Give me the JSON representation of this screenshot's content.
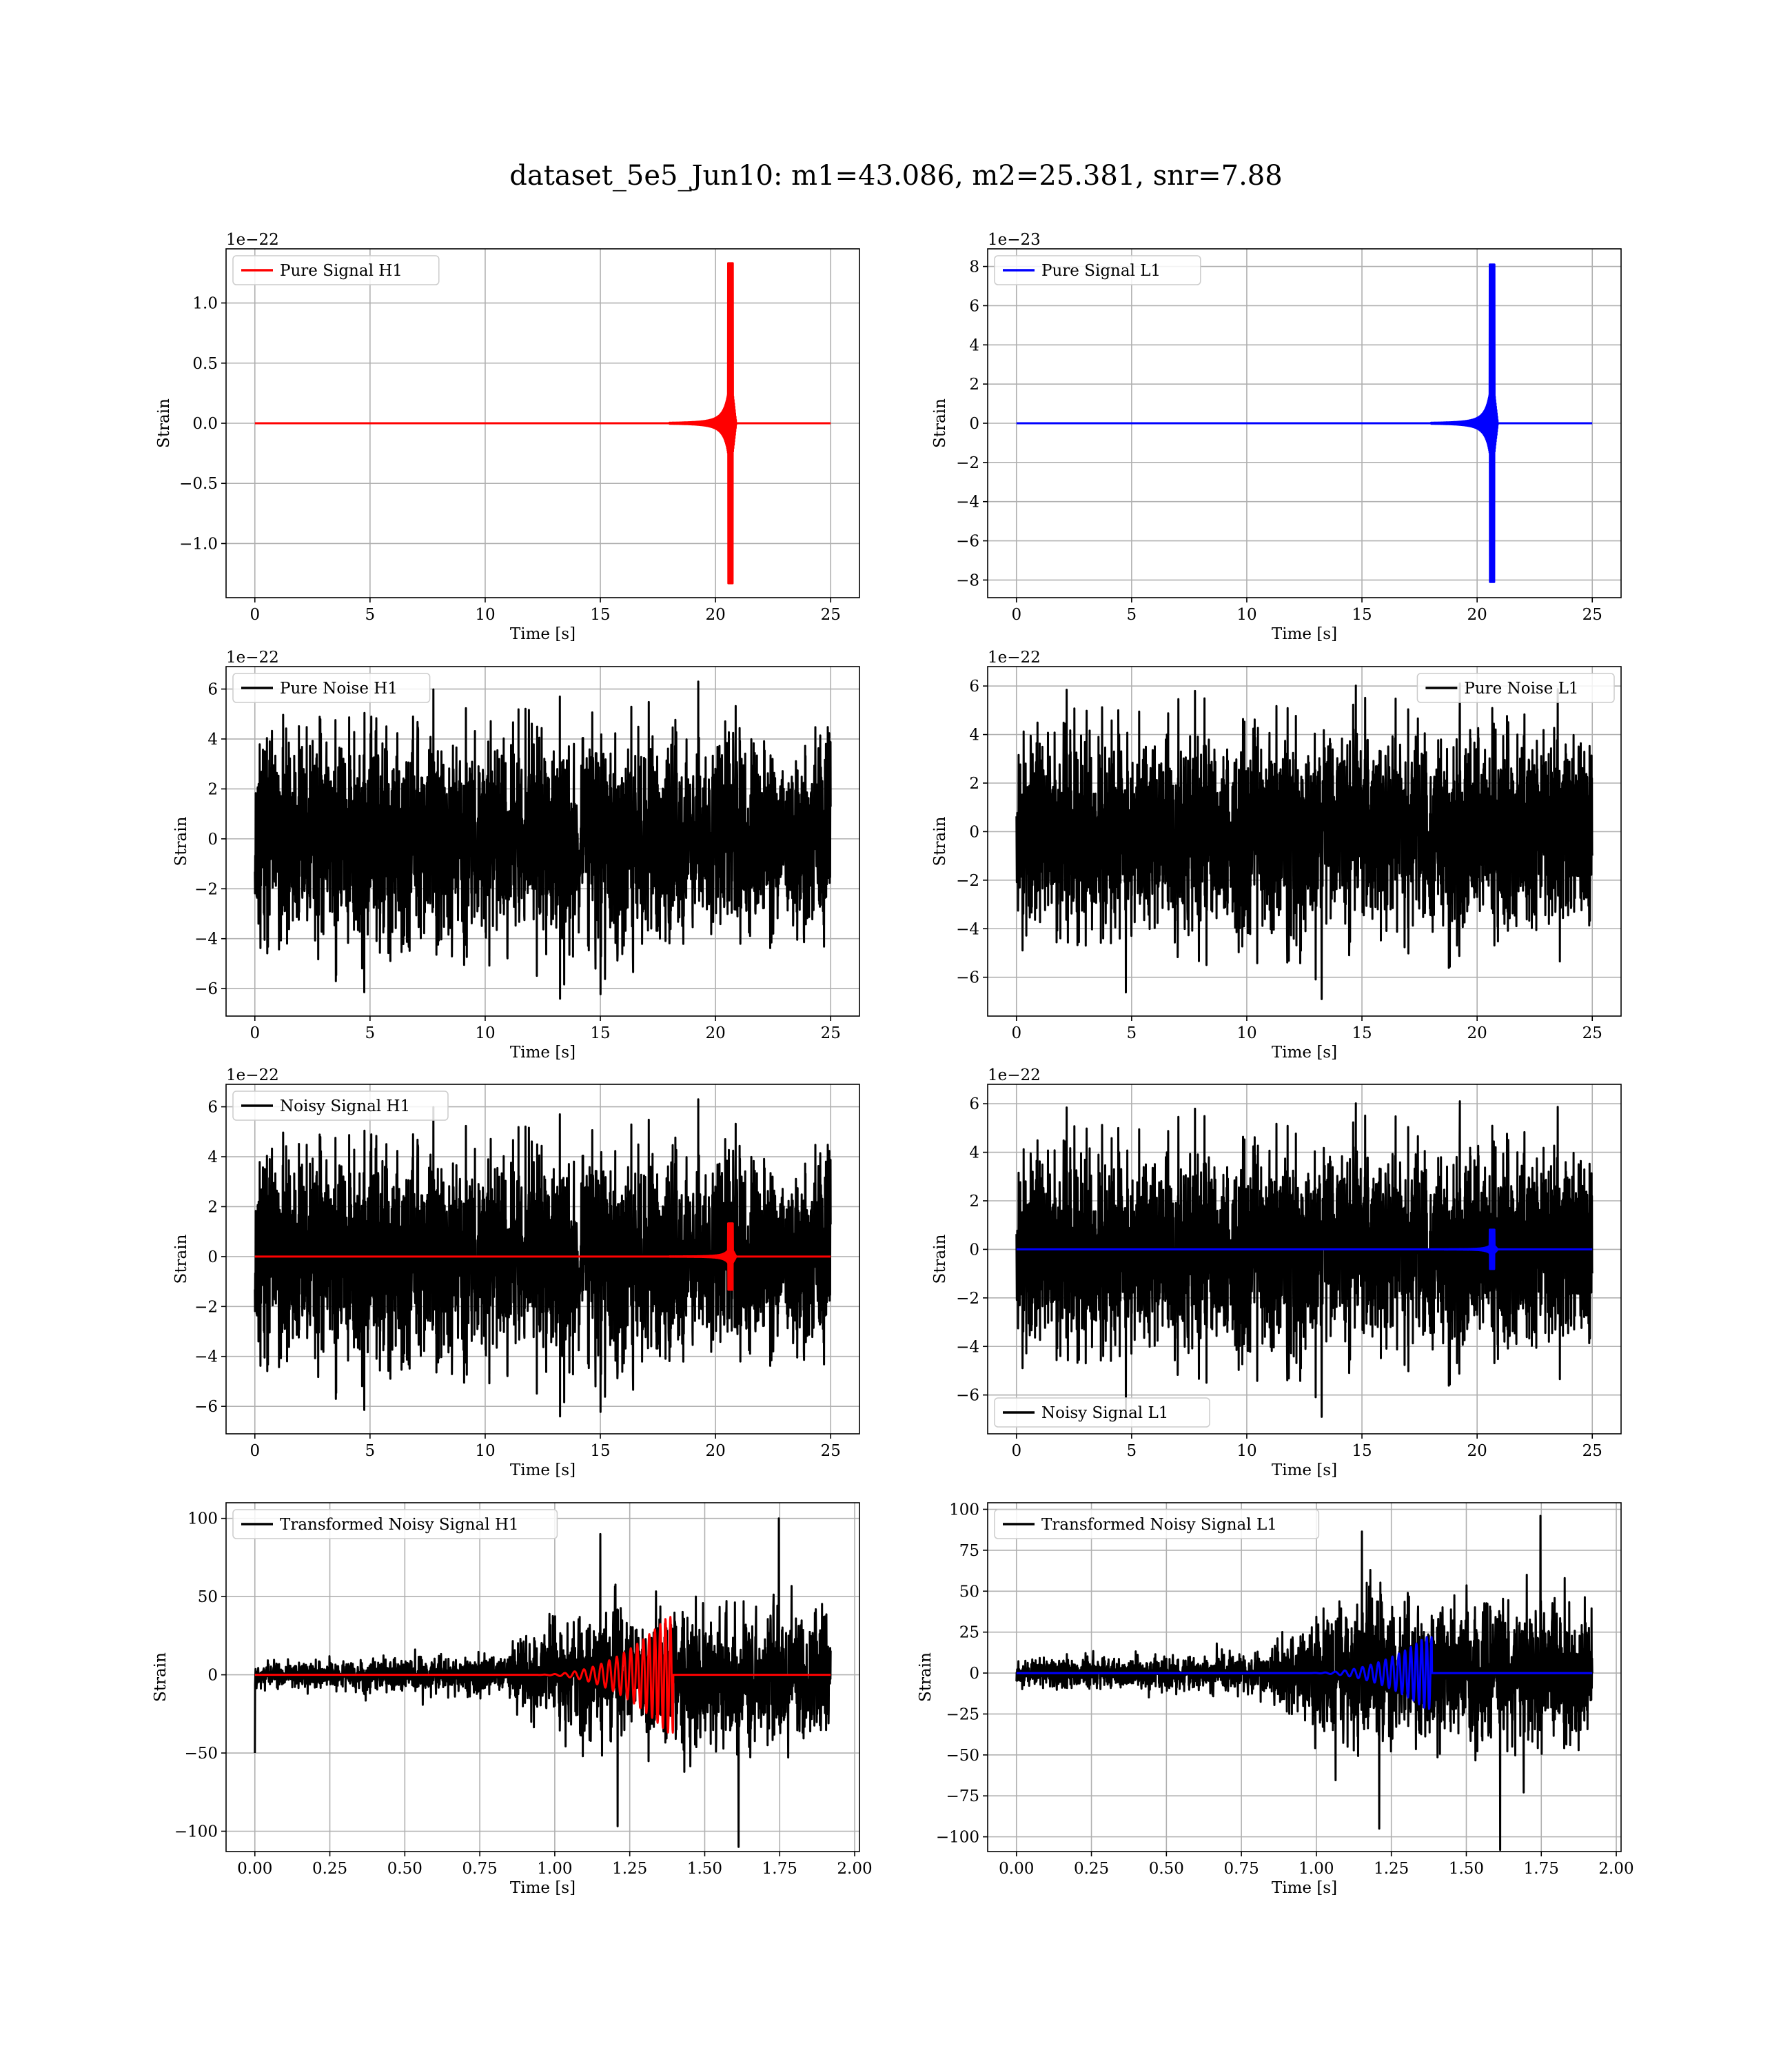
{
  "figure": {
    "title": "dataset_5e5_Jun10: m1=43.086, m2=25.381, snr=7.88"
  },
  "chart_data": [
    {
      "type": "line",
      "panel": "pure-signal-h1",
      "xlabel": "Time [s]",
      "ylabel": "Strain",
      "offset_label": "1e−22",
      "xlim": [
        -1.25,
        26.25
      ],
      "ylim": [
        -1.45,
        1.45
      ],
      "xticks": [
        0,
        5,
        10,
        15,
        20,
        25
      ],
      "xtick_labels": [
        "0",
        "5",
        "10",
        "15",
        "20",
        "25"
      ],
      "yticks": [
        -1.0,
        -0.5,
        0.0,
        0.5,
        1.0
      ],
      "ytick_labels": [
        "−1.0",
        "−0.5",
        "0.0",
        "0.5",
        "1.0"
      ],
      "grid": true,
      "legend_loc": "upper left",
      "series": [
        {
          "name": "Pure Signal H1",
          "color": "#ff0000",
          "kind": "chirp",
          "duration": 25,
          "merger": 20.7,
          "peak": 1.33,
          "pre_amp": 0.62,
          "baseline": 0.0
        }
      ]
    },
    {
      "type": "line",
      "panel": "pure-signal-l1",
      "xlabel": "Time [s]",
      "ylabel": "Strain",
      "offset_label": "1e−23",
      "xlim": [
        -1.25,
        26.25
      ],
      "ylim": [
        -8.9,
        8.9
      ],
      "xticks": [
        0,
        5,
        10,
        15,
        20,
        25
      ],
      "xtick_labels": [
        "0",
        "5",
        "10",
        "15",
        "20",
        "25"
      ],
      "yticks": [
        -8,
        -6,
        -4,
        -2,
        0,
        2,
        4,
        6,
        8
      ],
      "ytick_labels": [
        "−8",
        "−6",
        "−4",
        "−2",
        "0",
        "2",
        "4",
        "6",
        "8"
      ],
      "grid": true,
      "legend_loc": "upper left",
      "series": [
        {
          "name": "Pure Signal L1",
          "color": "#0000ff",
          "kind": "chirp",
          "duration": 25,
          "merger": 20.7,
          "peak": 8.1,
          "pre_amp": 3.8,
          "baseline": 0.0
        }
      ]
    },
    {
      "type": "line",
      "panel": "pure-noise-h1",
      "xlabel": "Time [s]",
      "ylabel": "Strain",
      "offset_label": "1e−22",
      "xlim": [
        -1.25,
        26.25
      ],
      "ylim": [
        -7.1,
        6.9
      ],
      "xticks": [
        0,
        5,
        10,
        15,
        20,
        25
      ],
      "xtick_labels": [
        "0",
        "5",
        "10",
        "15",
        "20",
        "25"
      ],
      "yticks": [
        -6,
        -4,
        -2,
        0,
        2,
        4,
        6
      ],
      "ytick_labels": [
        "−6",
        "−4",
        "−2",
        "0",
        "2",
        "4",
        "6"
      ],
      "grid": true,
      "legend_loc": "upper left",
      "series": [
        {
          "name": "Pure Noise H1",
          "color": "#000000",
          "kind": "noise",
          "duration": 25,
          "core": 2.8,
          "max": 6.3,
          "min": -6.4,
          "seed": 11
        }
      ]
    },
    {
      "type": "line",
      "panel": "pure-noise-l1",
      "xlabel": "Time [s]",
      "ylabel": "Strain",
      "offset_label": "1e−22",
      "xlim": [
        -1.25,
        26.25
      ],
      "ylim": [
        -7.6,
        6.8
      ],
      "xticks": [
        0,
        5,
        10,
        15,
        20,
        25
      ],
      "xtick_labels": [
        "0",
        "5",
        "10",
        "15",
        "20",
        "25"
      ],
      "yticks": [
        -6,
        -4,
        -2,
        0,
        2,
        4,
        6
      ],
      "ytick_labels": [
        "−6",
        "−4",
        "−2",
        "0",
        "2",
        "4",
        "6"
      ],
      "grid": true,
      "legend_loc": "upper right",
      "series": [
        {
          "name": "Pure Noise L1",
          "color": "#000000",
          "kind": "noise",
          "duration": 25,
          "core": 2.9,
          "max": 6.1,
          "min": -6.9,
          "seed": 23
        }
      ]
    },
    {
      "type": "line",
      "panel": "noisy-signal-h1",
      "xlabel": "Time [s]",
      "ylabel": "Strain",
      "offset_label": "1e−22",
      "xlim": [
        -1.25,
        26.25
      ],
      "ylim": [
        -7.1,
        6.9
      ],
      "xticks": [
        0,
        5,
        10,
        15,
        20,
        25
      ],
      "xtick_labels": [
        "0",
        "5",
        "10",
        "15",
        "20",
        "25"
      ],
      "yticks": [
        -6,
        -4,
        -2,
        0,
        2,
        4,
        6
      ],
      "ytick_labels": [
        "−6",
        "−4",
        "−2",
        "0",
        "2",
        "4",
        "6"
      ],
      "grid": true,
      "legend_loc": "upper left",
      "series": [
        {
          "name": "Noisy Signal H1",
          "color": "#000000",
          "kind": "noise",
          "duration": 25,
          "core": 2.8,
          "max": 6.3,
          "min": -6.4,
          "seed": 11
        },
        {
          "name": "",
          "color": "#ff0000",
          "kind": "chirp",
          "duration": 25,
          "merger": 20.7,
          "peak": 1.33,
          "pre_amp": 0.62,
          "baseline": 0.0
        }
      ]
    },
    {
      "type": "line",
      "panel": "noisy-signal-l1",
      "xlabel": "Time [s]",
      "ylabel": "Strain",
      "offset_label": "1e−22",
      "xlim": [
        -1.25,
        26.25
      ],
      "ylim": [
        -7.6,
        6.8
      ],
      "xticks": [
        0,
        5,
        10,
        15,
        20,
        25
      ],
      "xtick_labels": [
        "0",
        "5",
        "10",
        "15",
        "20",
        "25"
      ],
      "yticks": [
        -6,
        -4,
        -2,
        0,
        2,
        4,
        6
      ],
      "ytick_labels": [
        "−6",
        "−4",
        "−2",
        "0",
        "2",
        "4",
        "6"
      ],
      "grid": true,
      "legend_loc": "lower left",
      "series": [
        {
          "name": "Noisy Signal L1",
          "color": "#000000",
          "kind": "noise",
          "duration": 25,
          "core": 2.9,
          "max": 6.1,
          "min": -6.9,
          "seed": 23
        },
        {
          "name": "",
          "color": "#0000ff",
          "kind": "chirp",
          "duration": 25,
          "merger": 20.7,
          "peak": 0.81,
          "pre_amp": 0.38,
          "baseline": 0.0
        }
      ]
    },
    {
      "type": "line",
      "panel": "transformed-noisy-signal-h1",
      "xlabel": "Time [s]",
      "ylabel": "Strain",
      "offset_label": "",
      "xlim": [
        -0.096,
        2.016
      ],
      "ylim": [
        -113,
        110
      ],
      "xticks": [
        0.0,
        0.25,
        0.5,
        0.75,
        1.0,
        1.25,
        1.5,
        1.75,
        2.0
      ],
      "xtick_labels": [
        "0.00",
        "0.25",
        "0.50",
        "0.75",
        "1.00",
        "1.25",
        "1.50",
        "1.75",
        "2.00"
      ],
      "yticks": [
        -100,
        -50,
        0,
        50,
        100
      ],
      "ytick_labels": [
        "−100",
        "−50",
        "0",
        "50",
        "100"
      ],
      "grid": true,
      "legend_loc": "upper left",
      "series": [
        {
          "name": "Transformed Noisy Signal H1",
          "color": "#000000",
          "kind": "whitened",
          "duration": 1.92,
          "pre_amp": 8,
          "post_amp": 42,
          "burst_start": 1.05,
          "max": 100,
          "min": -110,
          "first_sample": -50,
          "seed": 5
        },
        {
          "name": "",
          "color": "#ff0000",
          "kind": "tchirp",
          "duration": 1.92,
          "start": 0.92,
          "merger": 1.375,
          "peak": 37,
          "fmin": 28,
          "fmax": 60
        }
      ]
    },
    {
      "type": "line",
      "panel": "transformed-noisy-signal-l1",
      "xlabel": "Time [s]",
      "ylabel": "Strain",
      "offset_label": "",
      "xlim": [
        -0.096,
        2.016
      ],
      "ylim": [
        -109,
        104
      ],
      "xticks": [
        0.0,
        0.25,
        0.5,
        0.75,
        1.0,
        1.25,
        1.5,
        1.75,
        2.0
      ],
      "xtick_labels": [
        "0.00",
        "0.25",
        "0.50",
        "0.75",
        "1.00",
        "1.25",
        "1.50",
        "1.75",
        "2.00"
      ],
      "yticks": [
        -100,
        -75,
        -50,
        -25,
        0,
        25,
        50,
        75,
        100
      ],
      "ytick_labels": [
        "−100",
        "−75",
        "−50",
        "−25",
        "0",
        "25",
        "50",
        "75",
        "100"
      ],
      "grid": true,
      "legend_loc": "upper left",
      "series": [
        {
          "name": "Transformed Noisy Signal L1",
          "color": "#000000",
          "kind": "whitened",
          "duration": 1.92,
          "pre_amp": 8,
          "post_amp": 42,
          "burst_start": 1.05,
          "max": 96,
          "min": -108,
          "first_sample": -5,
          "seed": 9
        },
        {
          "name": "",
          "color": "#0000ff",
          "kind": "tchirp",
          "duration": 1.92,
          "start": 0.95,
          "merger": 1.365,
          "peak": 22,
          "fmin": 28,
          "fmax": 60
        }
      ]
    }
  ]
}
